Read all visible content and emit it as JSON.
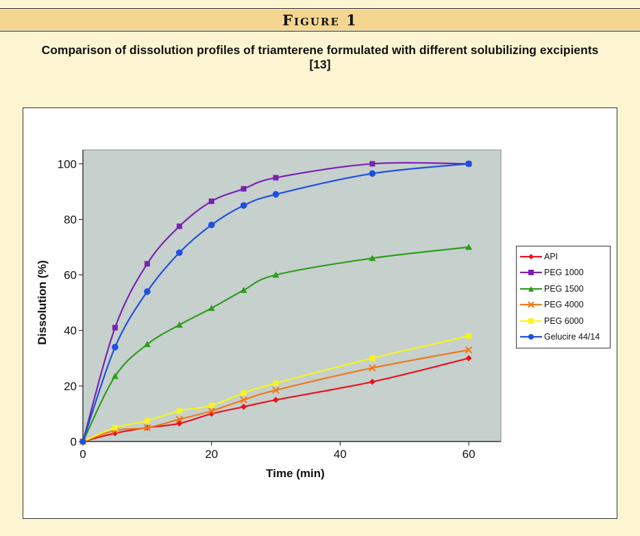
{
  "header": {
    "figure_label": "Figure 1"
  },
  "caption": "Comparison of dissolution profiles of triamterene formulated with different solubilizing excipients [13]",
  "colors": {
    "page_background": "#fdf5d2",
    "header_band": "#f4d690",
    "plot_area": "#c6d0cd"
  },
  "chart_data": {
    "type": "line",
    "title": "",
    "xlabel": "Time (min)",
    "ylabel": "Dissolution (%)",
    "xlim": [
      0,
      65
    ],
    "ylim": [
      0,
      105
    ],
    "xticks": [
      0,
      20,
      40,
      60
    ],
    "yticks": [
      0,
      20,
      40,
      60,
      80,
      100
    ],
    "grid": false,
    "legend_position": "right",
    "x": [
      0,
      5,
      10,
      15,
      20,
      25,
      30,
      45,
      60
    ],
    "series": [
      {
        "name": "API",
        "color": "#e8121c",
        "marker": "diamond",
        "values": [
          0,
          3,
          5,
          6.5,
          10,
          12.5,
          15,
          21.5,
          30
        ]
      },
      {
        "name": "PEG 1000",
        "color": "#7a22b0",
        "marker": "square",
        "values": [
          0,
          41,
          64,
          77.5,
          86.5,
          91,
          95,
          100,
          100
        ]
      },
      {
        "name": "PEG 1500",
        "color": "#2e9c1a",
        "marker": "triangle",
        "values": [
          0,
          23.5,
          35,
          42,
          48,
          54.5,
          60,
          66,
          70
        ]
      },
      {
        "name": "PEG 4000",
        "color": "#f07818",
        "marker": "x",
        "values": [
          0,
          4,
          5,
          8,
          11,
          15,
          18.5,
          26.5,
          33
        ]
      },
      {
        "name": "PEG 6000",
        "color": "#f7f51c",
        "marker": "square",
        "values": [
          0,
          5,
          7.5,
          11,
          13,
          17.5,
          21,
          30,
          38
        ]
      },
      {
        "name": "Gelucire 44/14",
        "color": "#1f4fe0",
        "marker": "circle",
        "values": [
          0,
          34,
          54,
          68,
          78,
          85,
          89,
          96.5,
          100
        ]
      }
    ]
  }
}
